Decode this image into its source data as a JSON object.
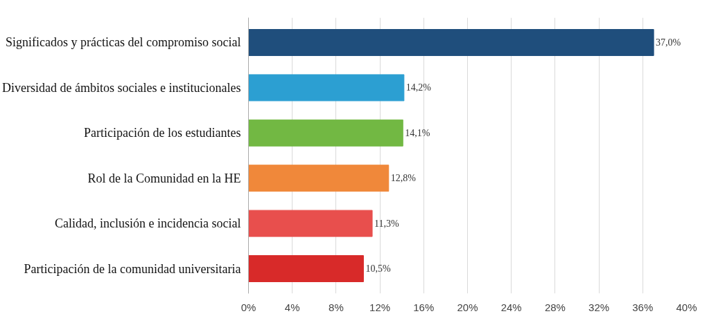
{
  "chart_data": {
    "type": "bar",
    "orientation": "horizontal",
    "categories": [
      "Significados y prácticas del compromiso social",
      "Diversidad de ámbitos sociales e institucionales",
      "Participación de los estudiantes",
      "Rol de la Comunidad en la HE",
      "Calidad, inclusión e incidencia social",
      "Participación de la comunidad universitaria"
    ],
    "values": [
      37.0,
      14.2,
      14.1,
      12.8,
      11.3,
      10.5
    ],
    "value_labels": [
      "37,0%",
      "14,2%",
      "14,1%",
      "12,8%",
      "11,3%",
      "10,5%"
    ],
    "colors": [
      "#1f4e7c",
      "#2c9fd2",
      "#72b843",
      "#f0883a",
      "#e84f4d",
      "#d82a29"
    ],
    "xlim": [
      0,
      40
    ],
    "xticks": [
      {
        "value": 0,
        "label": "0%"
      },
      {
        "value": 4,
        "label": "4%"
      },
      {
        "value": 8,
        "label": "8%"
      },
      {
        "value": 12,
        "label": "12%"
      },
      {
        "value": 16,
        "label": "16%"
      },
      {
        "value": 20,
        "label": "20%"
      },
      {
        "value": 24,
        "label": "24%"
      },
      {
        "value": 28,
        "label": "28%"
      },
      {
        "value": 32,
        "label": "32%"
      },
      {
        "value": 36,
        "label": "36%"
      },
      {
        "value": 40,
        "label": "40%"
      }
    ],
    "grid": "x"
  }
}
